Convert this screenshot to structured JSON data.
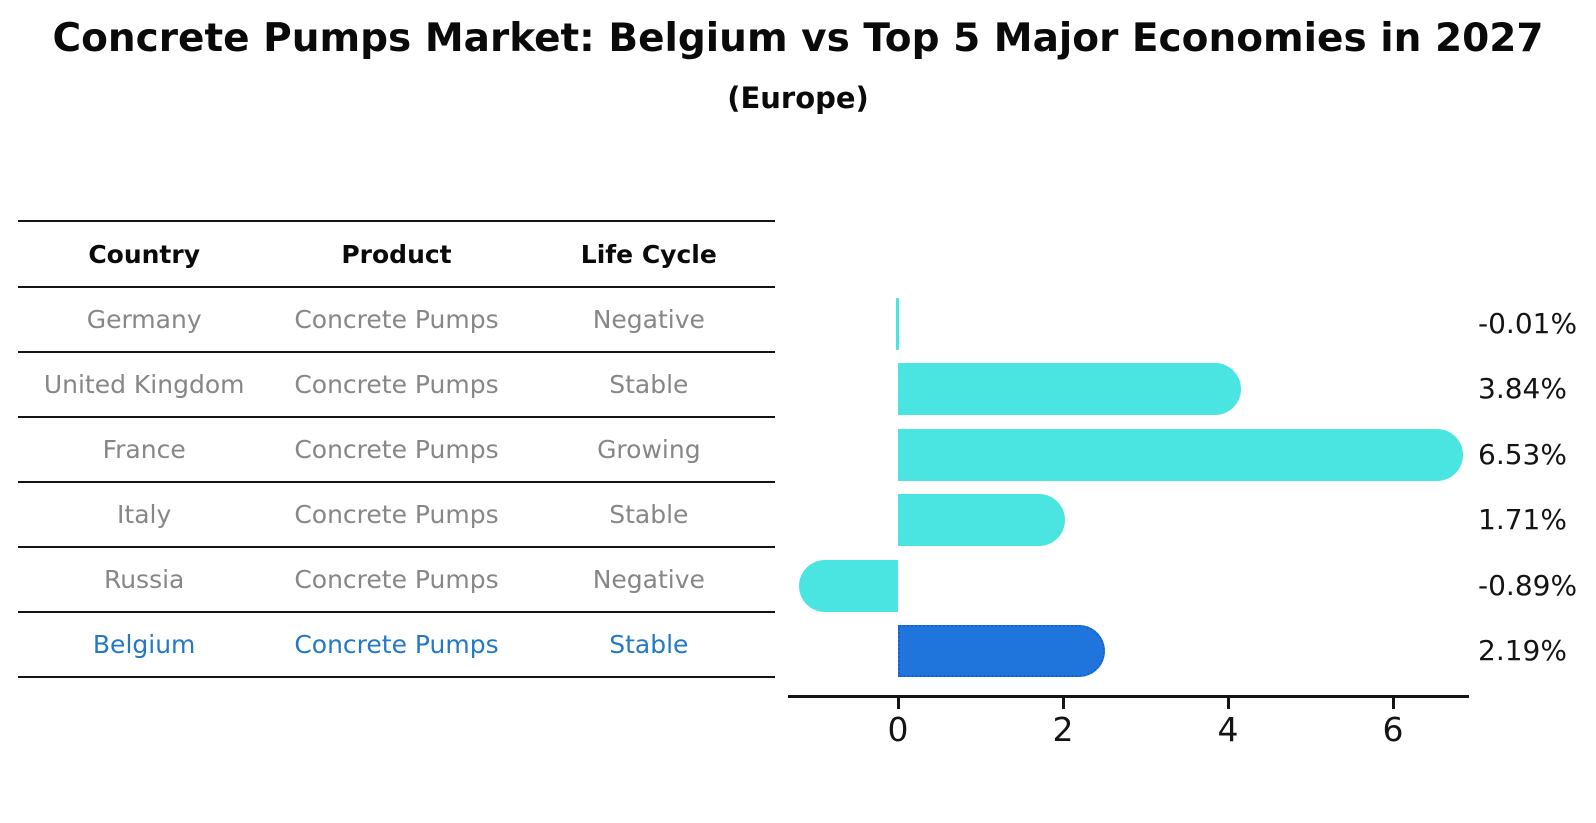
{
  "title": "Concrete Pumps Market: Belgium vs Top 5 Major Economies in 2027",
  "subtitle": "(Europe)",
  "table": {
    "headers": [
      "Country",
      "Product",
      "Life Cycle"
    ],
    "rows": [
      {
        "country": "Germany",
        "product": "Concrete Pumps",
        "life_cycle": "Negative",
        "highlight": false
      },
      {
        "country": "United Kingdom",
        "product": "Concrete Pumps",
        "life_cycle": "Stable",
        "highlight": false
      },
      {
        "country": "France",
        "product": "Concrete Pumps",
        "life_cycle": "Growing",
        "highlight": false
      },
      {
        "country": "Italy",
        "product": "Concrete Pumps",
        "life_cycle": "Stable",
        "highlight": false
      },
      {
        "country": "Russia",
        "product": "Concrete Pumps",
        "life_cycle": "Negative",
        "highlight": false
      },
      {
        "country": "Belgium",
        "product": "Concrete Pumps",
        "life_cycle": "Stable",
        "highlight": true
      }
    ]
  },
  "chart_data": {
    "type": "bar",
    "orientation": "horizontal",
    "title": "Concrete Pumps Market: Belgium vs Top 5 Major Economies in 2027 (Europe)",
    "categories": [
      "Germany",
      "United Kingdom",
      "France",
      "Italy",
      "Russia",
      "Belgium"
    ],
    "values": [
      -0.01,
      3.84,
      6.53,
      1.71,
      -0.89,
      2.19
    ],
    "value_labels": [
      "-0.01%",
      "3.84%",
      "6.53%",
      "1.71%",
      "-0.89%",
      "2.19%"
    ],
    "unit": "%",
    "xticks": [
      0,
      2,
      4,
      6
    ],
    "xlim": [
      -1.33,
      6.92
    ],
    "grid": false,
    "legend": false,
    "highlight_index": 5,
    "bar_color": "#4AE4E1",
    "highlight_color": "#1F75DB",
    "highlight_border": "#1761CF"
  },
  "colors": {
    "row_text": "#878787",
    "highlight_text": "#2379C6",
    "axis": "#141414",
    "background": "#ffffff"
  }
}
